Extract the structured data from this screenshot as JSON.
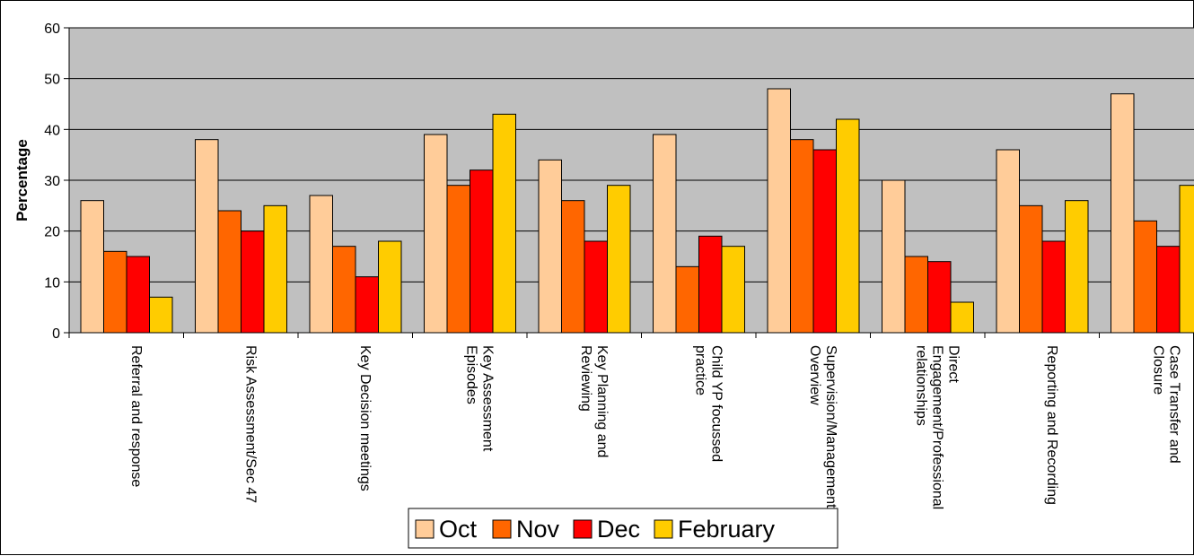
{
  "chart_data": {
    "type": "bar",
    "title": "",
    "xlabel": "",
    "ylabel": "Percentage",
    "ylim": [
      0,
      60
    ],
    "yticks": [
      0,
      10,
      20,
      30,
      40,
      50,
      60
    ],
    "grid": true,
    "legend_position": "bottom-center",
    "categories": [
      [
        "Referral and response"
      ],
      [
        "Risk Assessment/Sec 47"
      ],
      [
        "Key Decision meetings"
      ],
      [
        "Key Assessment",
        "Episodes"
      ],
      [
        "Key Planning and",
        "Reviewing"
      ],
      [
        "Child YP focussed",
        "practice"
      ],
      [
        "Supervision/Management",
        "Overview"
      ],
      [
        "Direct",
        "Engagement/Professional",
        "relationships"
      ],
      [
        "Reporting and Recording"
      ],
      [
        "Case Transfer and",
        "Closure"
      ]
    ],
    "series": [
      {
        "name": "Oct",
        "color": "#FFCC99",
        "values": [
          26,
          38,
          27,
          39,
          34,
          39,
          48,
          30,
          36,
          47
        ]
      },
      {
        "name": "Nov",
        "color": "#FF6600",
        "values": [
          16,
          24,
          17,
          29,
          26,
          13,
          38,
          15,
          25,
          22
        ]
      },
      {
        "name": "Dec",
        "color": "#FF0000",
        "values": [
          15,
          20,
          11,
          32,
          18,
          19,
          36,
          14,
          18,
          17
        ]
      },
      {
        "name": "February",
        "color": "#FFCC00",
        "values": [
          7,
          25,
          18,
          43,
          29,
          17,
          42,
          6,
          26,
          29
        ]
      }
    ],
    "plot_background": "#C0C0C0"
  }
}
